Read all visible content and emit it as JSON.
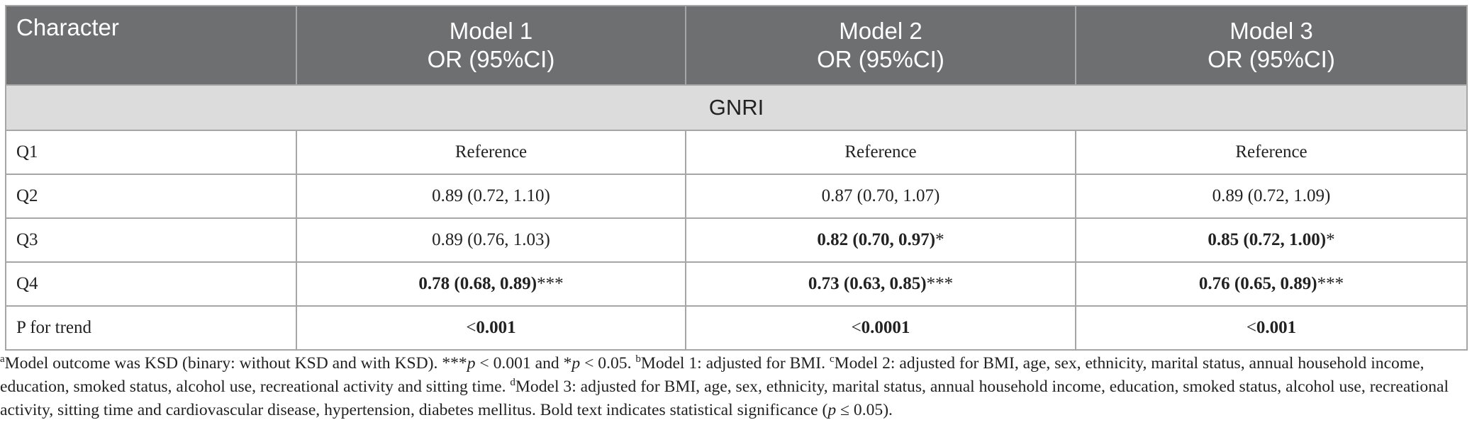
{
  "table": {
    "columns": [
      [
        "Character"
      ],
      [
        "Model 1",
        "OR (95%CI)"
      ],
      [
        "Model 2",
        "OR (95%CI)"
      ],
      [
        "Model 3",
        "OR (95%CI)"
      ]
    ],
    "section": "GNRI",
    "rows": [
      [
        "Q1",
        "Reference",
        "Reference",
        "Reference"
      ],
      [
        "Q2",
        "0.89 (0.72, 1.10)",
        "0.87 (0.70, 1.07)",
        "0.89 (0.72, 1.09)"
      ],
      [
        "Q3",
        "0.89 (0.76, 1.03)",
        {
          "strong": "0.82 (0.70, 0.97)",
          "after": "*"
        },
        {
          "strong": "0.85 (0.72, 1.00)",
          "after": "*"
        }
      ],
      [
        "Q4",
        {
          "strong": "0.78 (0.68, 0.89)",
          "after": "***"
        },
        {
          "strong": "0.73 (0.63, 0.85)",
          "after": "***"
        },
        {
          "strong": "0.76 (0.65, 0.89)",
          "after": "***"
        }
      ],
      [
        "P for trend",
        {
          "before": "<",
          "strong": "0.001"
        },
        {
          "before": "<",
          "strong": "0.0001"
        },
        {
          "before": "<",
          "strong": "0.001"
        }
      ]
    ]
  },
  "footnote": [
    {
      "sup": "a"
    },
    "Model outcome was KSD (binary: without KSD and with KSD). ***",
    {
      "italic": "p"
    },
    " < 0.001 and *",
    {
      "italic": "p"
    },
    " < 0.05. ",
    {
      "sup": "b"
    },
    "Model 1: adjusted for BMI. ",
    {
      "sup": "c"
    },
    "Model 2: adjusted for BMI, age, sex, ethnicity, marital status, annual household income, education, smoked status, alcohol use, recreational activity and sitting time. ",
    {
      "sup": "d"
    },
    "Model 3: adjusted for BMI, age, sex, ethnicity, marital status, annual household income, education, smoked status, alcohol use, recreational activity, sitting time and cardiovascular disease, hypertension, diabetes mellitus. Bold text indicates statistical significance (",
    {
      "italic": "p"
    },
    " ≤ 0.05)."
  ]
}
